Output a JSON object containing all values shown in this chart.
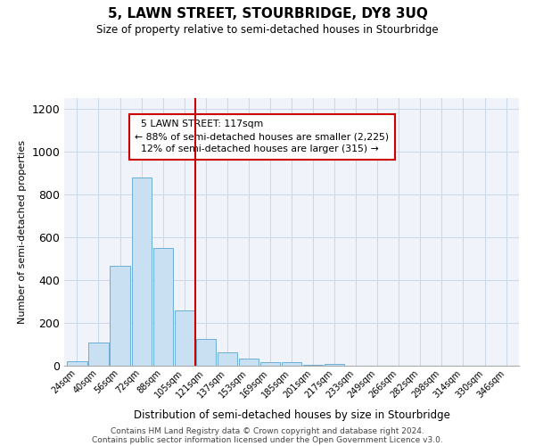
{
  "title": "5, LAWN STREET, STOURBRIDGE, DY8 3UQ",
  "subtitle": "Size of property relative to semi-detached houses in Stourbridge",
  "xlabel": "Distribution of semi-detached houses by size in Stourbridge",
  "ylabel": "Number of semi-detached properties",
  "bar_labels": [
    "24sqm",
    "40sqm",
    "56sqm",
    "72sqm",
    "88sqm",
    "105sqm",
    "121sqm",
    "137sqm",
    "153sqm",
    "169sqm",
    "185sqm",
    "201sqm",
    "217sqm",
    "233sqm",
    "249sqm",
    "266sqm",
    "282sqm",
    "298sqm",
    "314sqm",
    "330sqm",
    "346sqm"
  ],
  "bar_values": [
    20,
    110,
    465,
    880,
    550,
    260,
    125,
    63,
    35,
    18,
    15,
    5,
    8,
    0,
    0,
    0,
    0,
    0,
    0,
    0,
    0
  ],
  "highlight_index": 6,
  "property_label": "5 LAWN STREET: 117sqm",
  "smaller_pct": "88%",
  "smaller_count": "2,225",
  "larger_pct": "12%",
  "larger_count": "315",
  "bar_color": "#c9dff2",
  "bar_edge_color": "#6aaed6",
  "highlight_line_color": "#cc0000",
  "annotation_box_edge": "#cc0000",
  "footer_line1": "Contains HM Land Registry data © Crown copyright and database right 2024.",
  "footer_line2": "Contains public sector information licensed under the Open Government Licence v3.0.",
  "ylim": [
    0,
    1250
  ],
  "yticks": [
    0,
    200,
    400,
    600,
    800,
    1000,
    1200
  ],
  "bg_color": "#f0f4fa"
}
